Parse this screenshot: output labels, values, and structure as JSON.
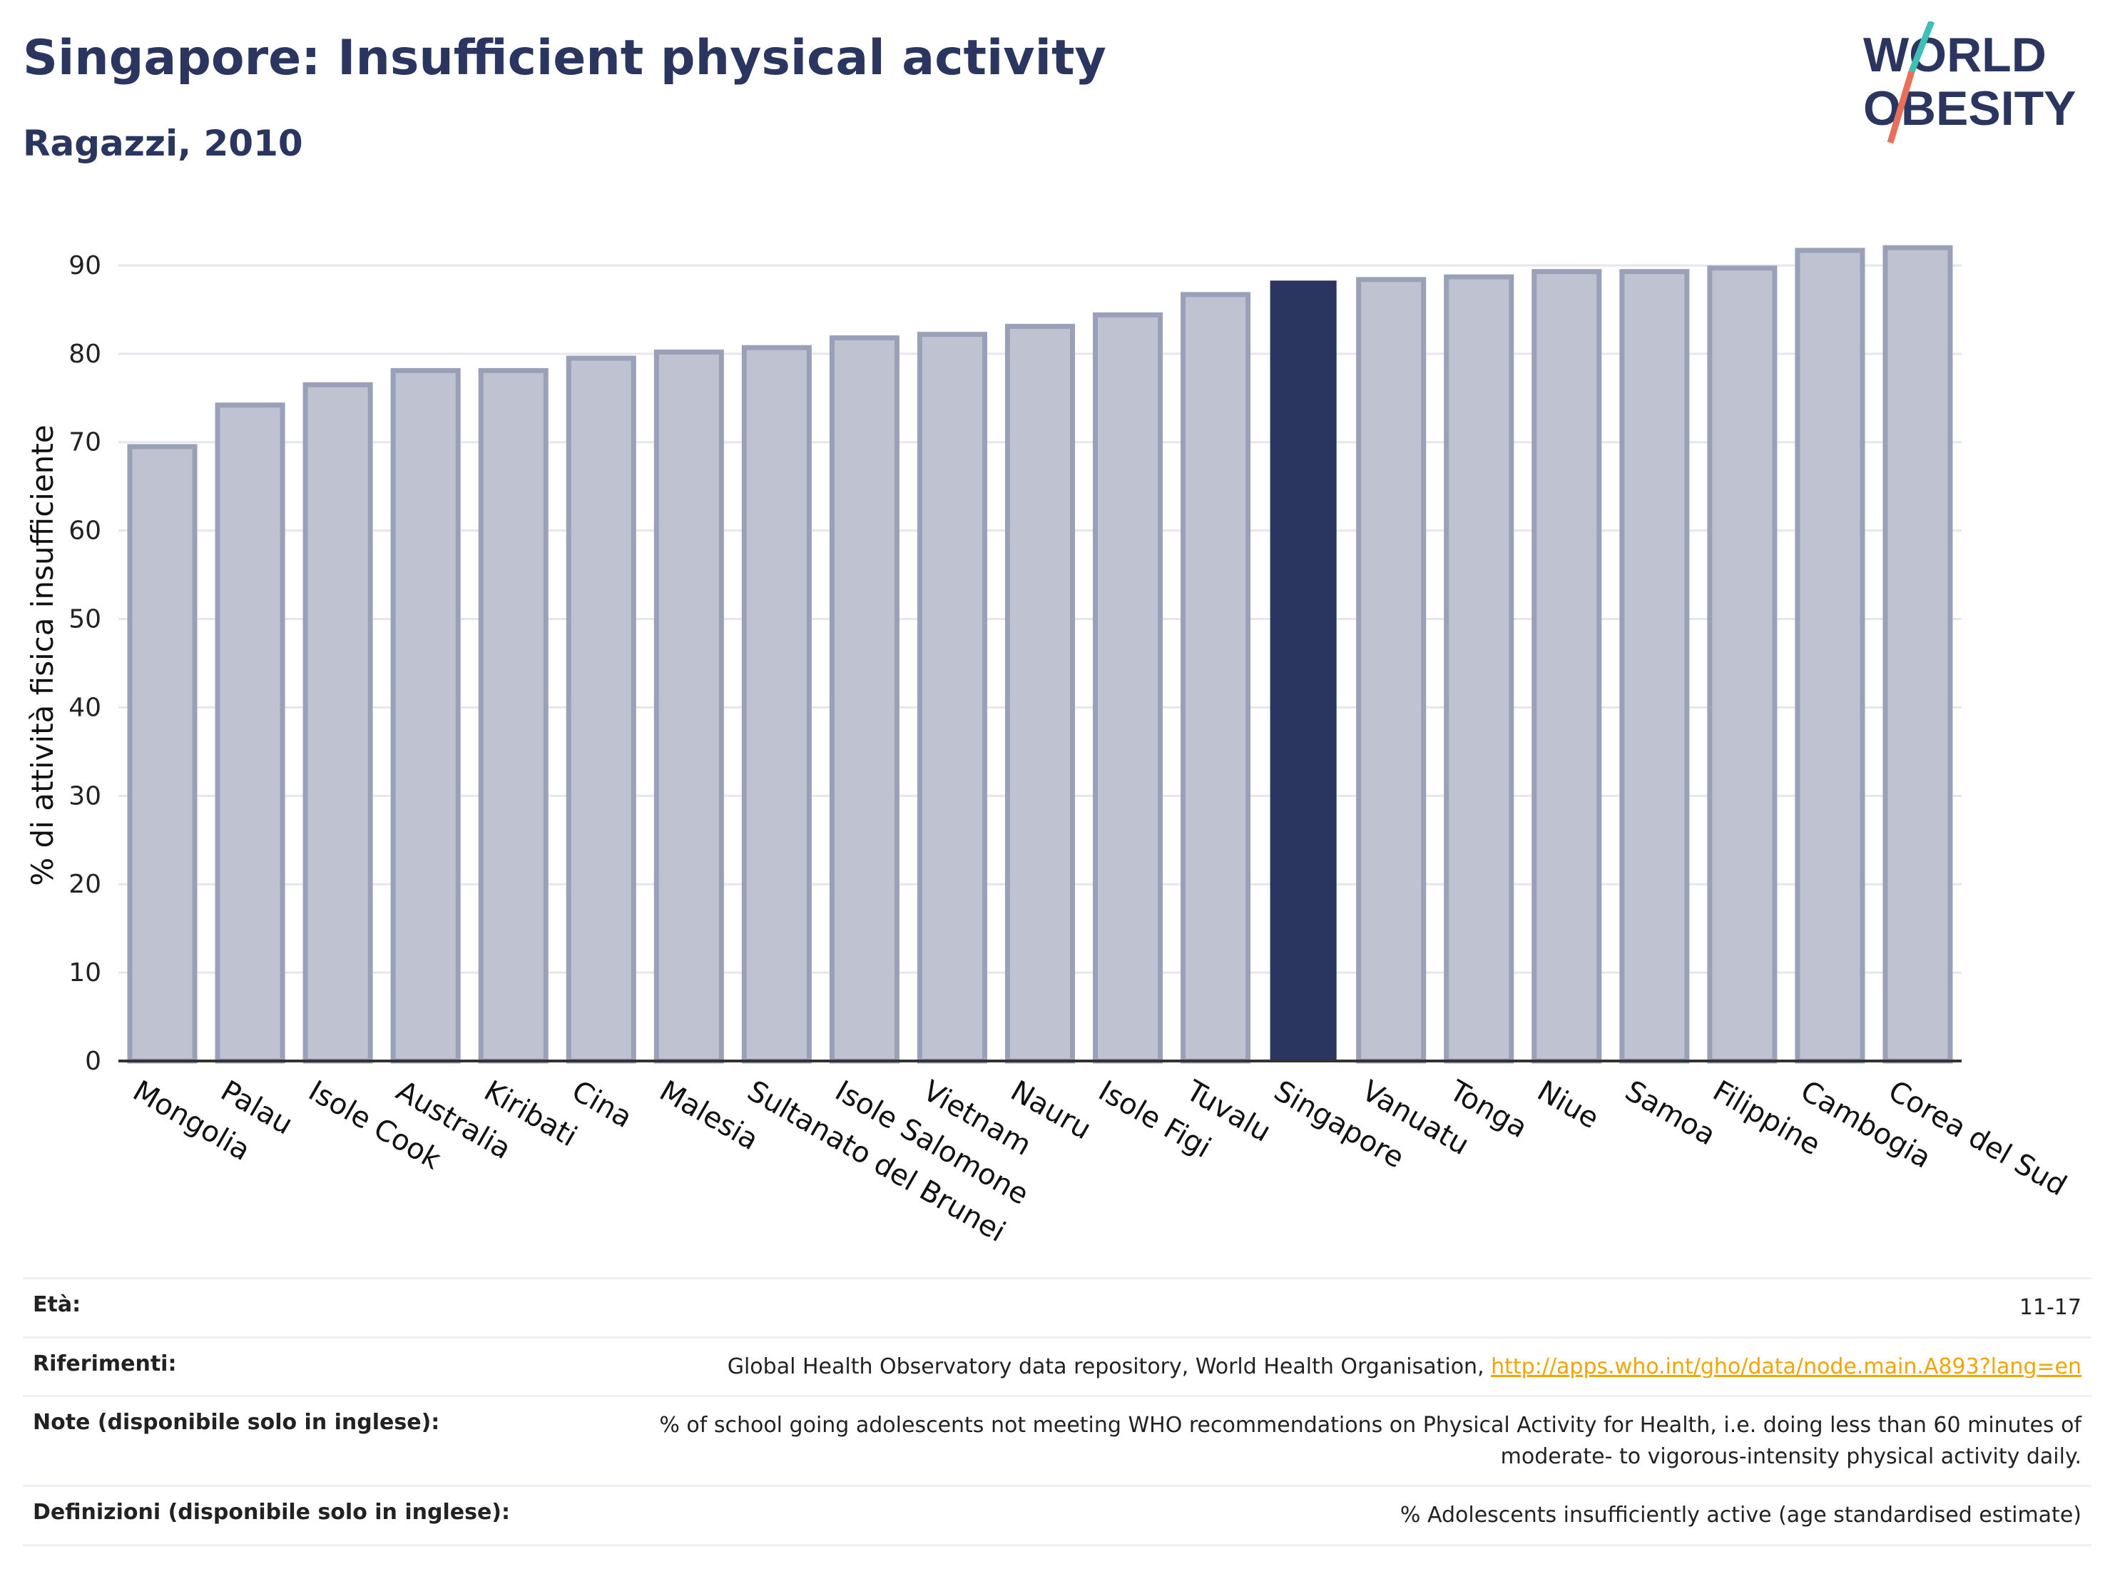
{
  "header": {
    "title": "Singapore: Insufficient physical activity",
    "subtitle": "Ragazzi, 2010"
  },
  "logo": {
    "line1": "WORLD",
    "line2": "OBESITY",
    "colors": {
      "text": "#2a3560",
      "slash_teal": "#3fbfb5",
      "slash_red": "#e8705a"
    }
  },
  "chart_data": {
    "type": "bar",
    "ylabel": "% di attività fisica insufficiente",
    "xlabel": "",
    "ylim": [
      0,
      95
    ],
    "yticks": [
      0,
      10,
      20,
      30,
      40,
      50,
      60,
      70,
      80,
      90
    ],
    "grid": true,
    "highlight": "Singapore",
    "categories": [
      "Mongolia",
      "Palau",
      "Isole Cook",
      "Australia",
      "Kiribati",
      "Cina",
      "Malesia",
      "Sultanato del Brunei",
      "Isole Salomone",
      "Vietnam",
      "Nauru",
      "Isole Figi",
      "Tuvalu",
      "Singapore",
      "Vanuatu",
      "Tonga",
      "Niue",
      "Samoa",
      "Filippine",
      "Cambogia",
      "Corea del Sud"
    ],
    "values": [
      69.5,
      74.2,
      76.5,
      78.1,
      78.1,
      79.5,
      80.2,
      80.7,
      81.8,
      82.2,
      83.1,
      84.4,
      86.7,
      88.2,
      88.4,
      88.7,
      89.3,
      89.3,
      89.7,
      91.7,
      92.0
    ],
    "colors": {
      "bar": "#bfc2d0",
      "bar_border": "#9aa0b8",
      "highlight": "#2a3560",
      "grid": "#e6e7ee",
      "axis": "#333333"
    }
  },
  "info": {
    "eta_label": "Età:",
    "eta_value": "11-17",
    "riferimenti_label": "Riferimenti:",
    "riferimenti_text": "Global Health Observatory data repository, World Health Organisation, ",
    "riferimenti_link": "http://apps.who.int/gho/data/node.main.A893?lang=en",
    "note_label": "Note (disponibile solo in inglese):",
    "note_line1": "% of school going adolescents not meeting WHO recommendations on Physical Activity for Health, i.e. doing less than 60 minutes of",
    "note_line2": "moderate- to vigorous-intensity physical activity daily.",
    "definizioni_label": "Definizioni (disponibile solo in inglese):",
    "definizioni_value": "% Adolescents insufficiently active (age standardised estimate)"
  }
}
